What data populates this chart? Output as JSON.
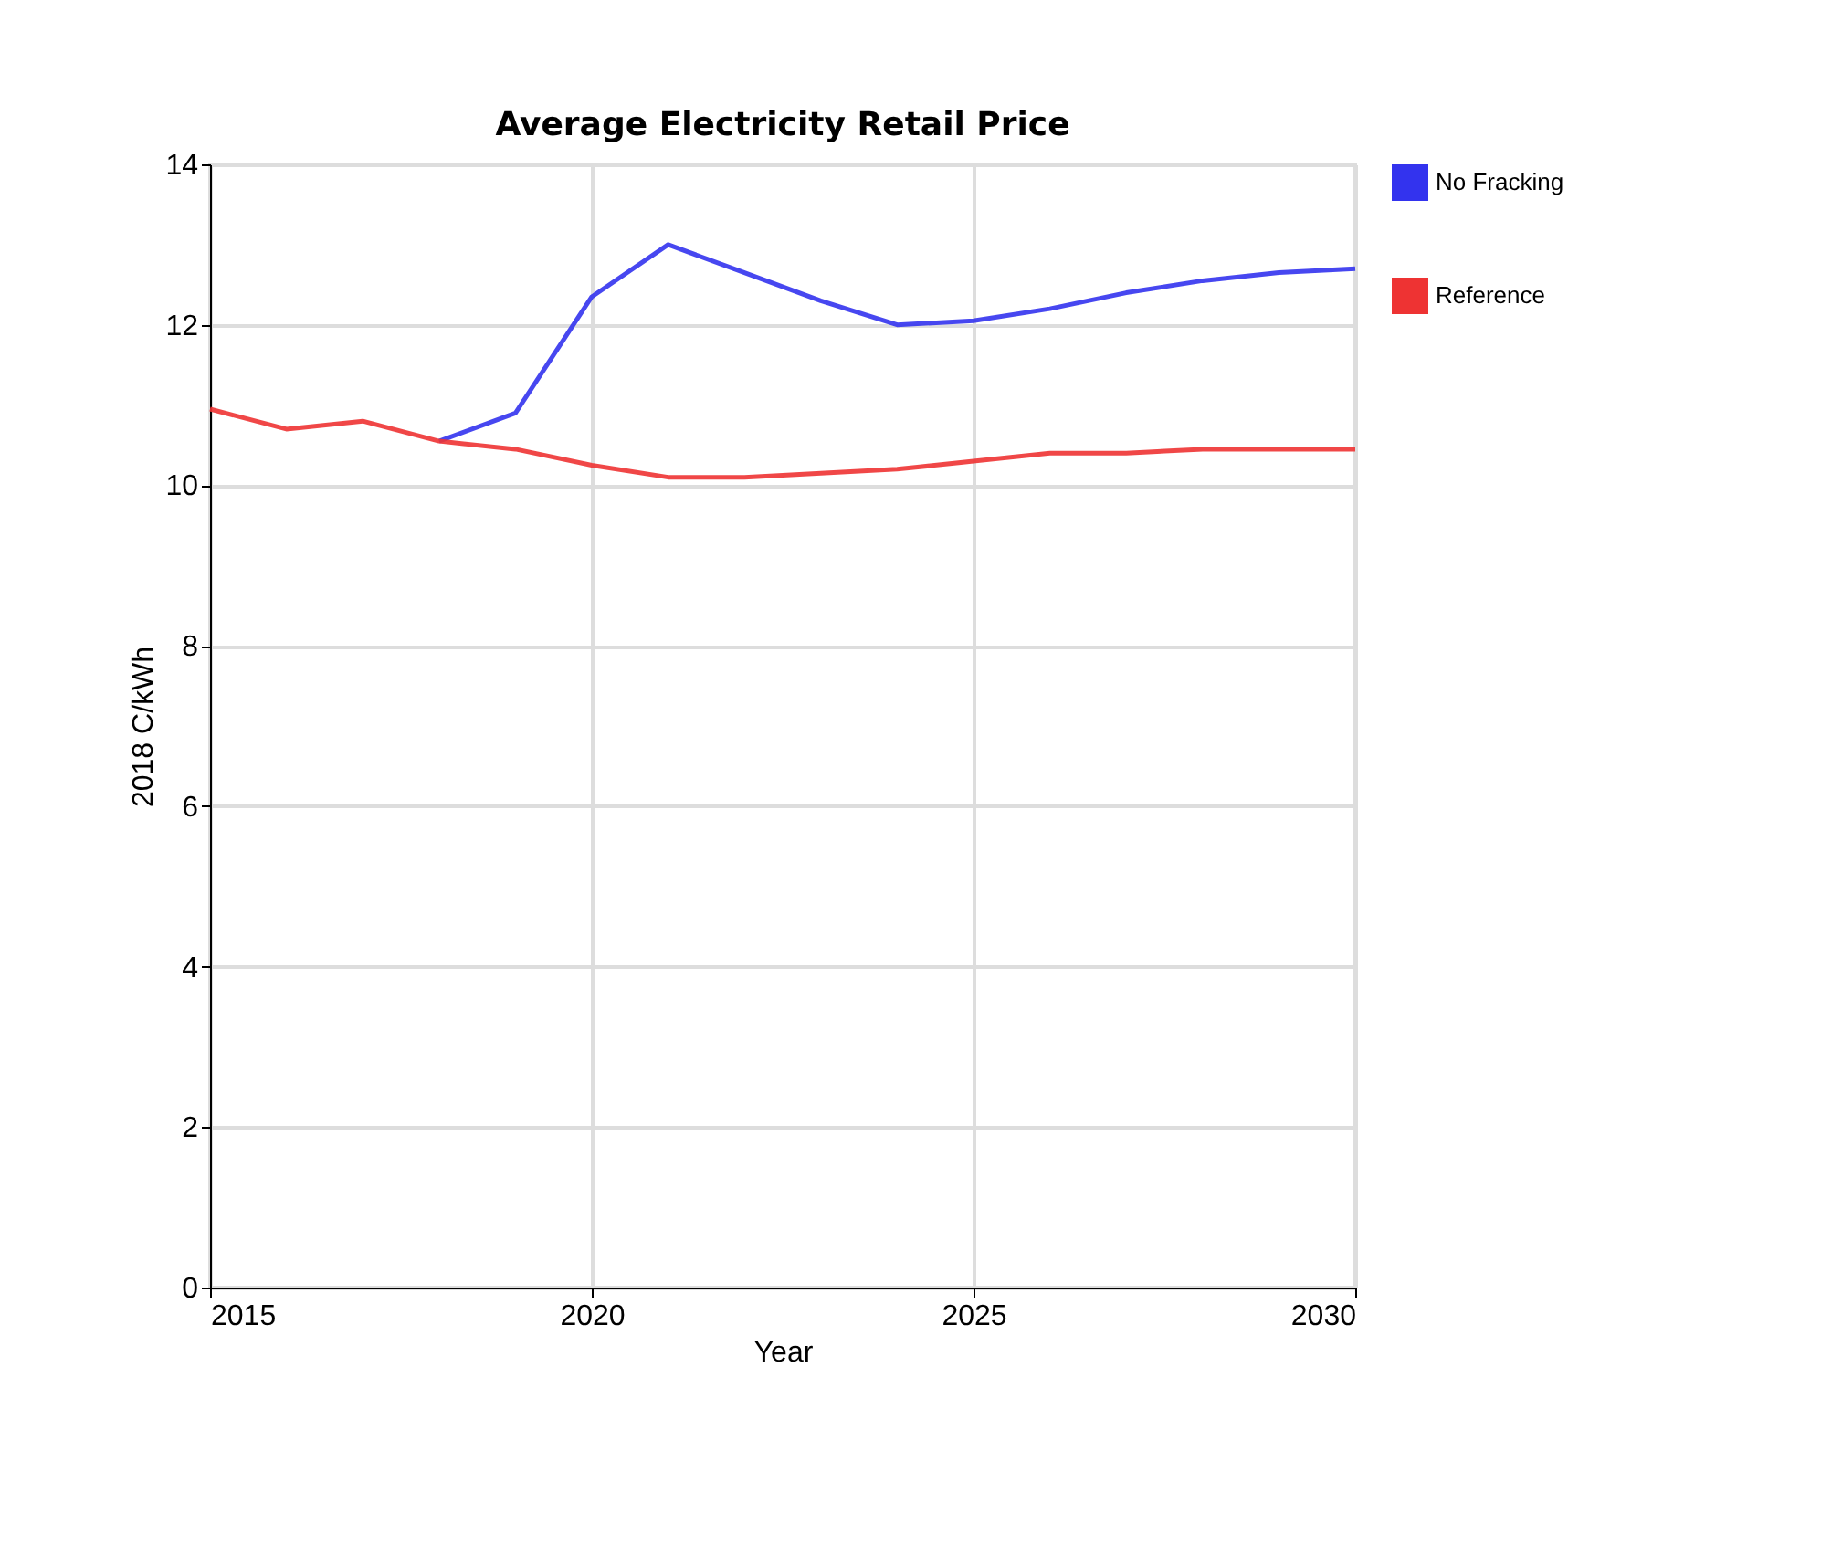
{
  "chart_data": {
    "type": "line",
    "title": "Average Electricity Retail Price",
    "xlabel": "Year",
    "ylabel": "2018 C/kWh",
    "x": [
      2015,
      2016,
      2017,
      2018,
      2019,
      2020,
      2021,
      2022,
      2023,
      2024,
      2025,
      2026,
      2027,
      2028,
      2029,
      2030
    ],
    "series": [
      {
        "name": "No Fracking",
        "color": "#3333ee",
        "values": [
          null,
          null,
          null,
          10.55,
          10.9,
          12.35,
          13.0,
          12.65,
          12.3,
          12.0,
          12.05,
          12.2,
          12.4,
          12.55,
          12.65,
          12.7
        ]
      },
      {
        "name": "Reference",
        "color": "#ee3333",
        "values": [
          10.95,
          10.7,
          10.8,
          10.55,
          10.45,
          10.25,
          10.1,
          10.1,
          10.15,
          10.2,
          10.3,
          10.4,
          10.4,
          10.45,
          10.45,
          10.45
        ]
      }
    ],
    "xlim": [
      2015,
      2030
    ],
    "xticks": [
      2015,
      2020,
      2025,
      2030
    ],
    "ylim": [
      0,
      14
    ],
    "yticks": [
      0,
      2,
      4,
      6,
      8,
      10,
      12,
      14
    ],
    "grid": true,
    "legend": "top right",
    "line_style": "solid",
    "marker": "none"
  }
}
